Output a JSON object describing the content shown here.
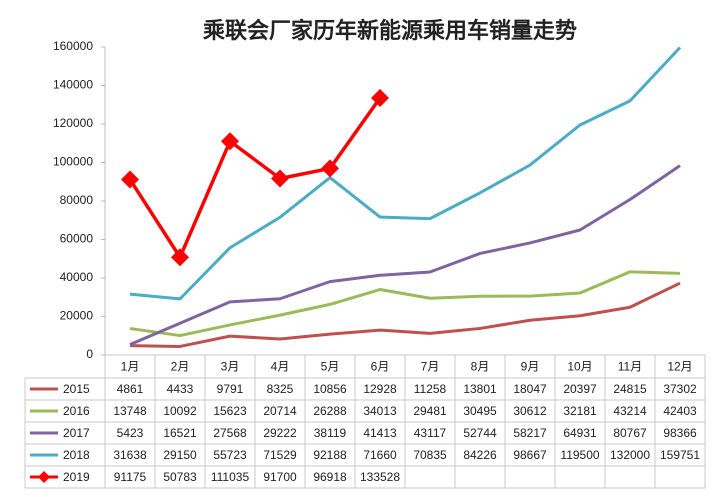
{
  "chart_data": {
    "type": "line",
    "title": "乘联会厂家历年新能源乘用车销量走势",
    "categories": [
      "1月",
      "2月",
      "3月",
      "4月",
      "5月",
      "6月",
      "7月",
      "8月",
      "9月",
      "10月",
      "11月",
      "12月"
    ],
    "series": [
      {
        "name": "2015",
        "color": "#c0504d",
        "values": [
          4861,
          4433,
          9791,
          8325,
          10856,
          12928,
          11258,
          13801,
          18047,
          20397,
          24815,
          37302
        ]
      },
      {
        "name": "2016",
        "color": "#9bbb59",
        "values": [
          13748,
          10092,
          15623,
          20714,
          26288,
          34013,
          29481,
          30495,
          30612,
          32181,
          43214,
          42403
        ]
      },
      {
        "name": "2017",
        "color": "#8064a2",
        "values": [
          5423,
          16521,
          27568,
          29222,
          38119,
          41413,
          43117,
          52744,
          58217,
          64931,
          80767,
          98366
        ]
      },
      {
        "name": "2018",
        "color": "#4bacc6",
        "values": [
          31638,
          29150,
          55723,
          71529,
          92188,
          71660,
          70835,
          84226,
          98667,
          119500,
          132000,
          159751
        ]
      },
      {
        "name": "2019",
        "color": "#ff0000",
        "marker": "diamond",
        "values": [
          91175,
          50783,
          111035,
          91700,
          96918,
          133528,
          null,
          null,
          null,
          null,
          null,
          null
        ]
      }
    ],
    "ylim": [
      0,
      160000
    ],
    "yticks": [
      0,
      20000,
      40000,
      60000,
      80000,
      100000,
      120000,
      140000,
      160000
    ],
    "grid": false
  }
}
